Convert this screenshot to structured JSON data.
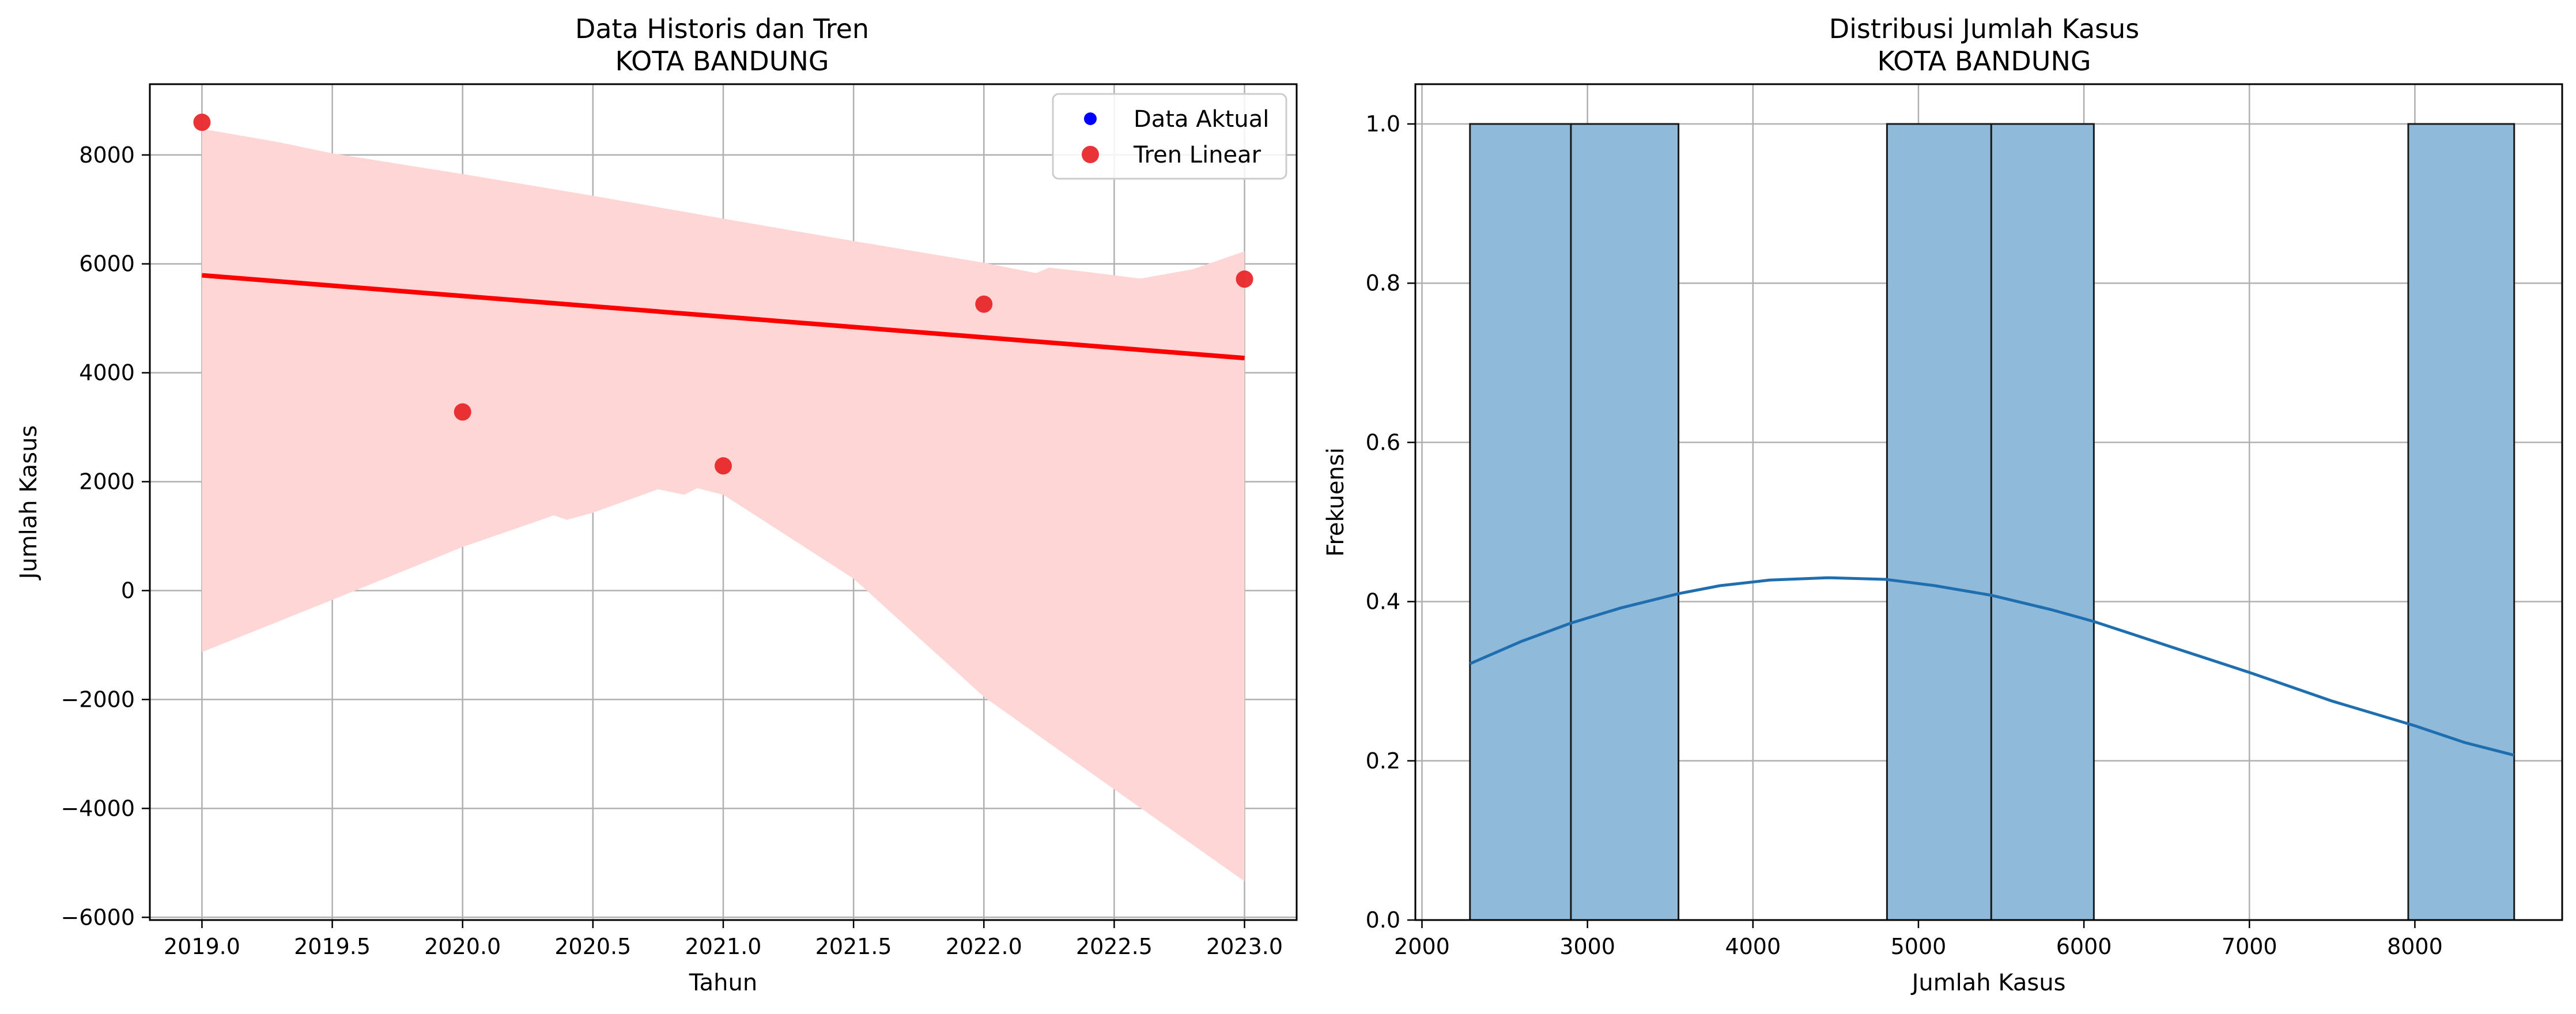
{
  "chart_data": [
    {
      "type": "scatter",
      "title_lines": [
        "Data Historis dan Tren",
        "KOTA BANDUNG"
      ],
      "xlabel": "Tahun",
      "ylabel": "Jumlah Kasus",
      "xlim": [
        2018.8,
        2023.2
      ],
      "ylim": [
        -6050,
        9300
      ],
      "xticks": [
        2019.0,
        2019.5,
        2020.0,
        2020.5,
        2021.0,
        2021.5,
        2022.0,
        2022.5,
        2023.0
      ],
      "xtick_labels": [
        "2019.0",
        "2019.5",
        "2020.0",
        "2020.5",
        "2021.0",
        "2021.5",
        "2022.0",
        "2022.5",
        "2023.0"
      ],
      "yticks": [
        -6000,
        -4000,
        -2000,
        0,
        2000,
        4000,
        6000,
        8000
      ],
      "ytick_labels": [
        "−6000",
        "−4000",
        "−2000",
        "0",
        "2000",
        "4000",
        "6000",
        "8000"
      ],
      "grid": true,
      "legend_position": "top-right",
      "legend": [
        {
          "label": "Data Aktual",
          "color": "#0000ff"
        },
        {
          "label": "Tren Linear",
          "color": "#e8282b"
        }
      ],
      "points": [
        {
          "x": 2019,
          "y": 8600
        },
        {
          "x": 2020,
          "y": 3280
        },
        {
          "x": 2021,
          "y": 2290
        },
        {
          "x": 2022,
          "y": 5260
        },
        {
          "x": 2023,
          "y": 5720
        }
      ],
      "trend_line": {
        "x": [
          2019,
          2023
        ],
        "y": [
          5790,
          4270
        ],
        "color": "#ff0000"
      },
      "confidence_band": {
        "color": "#ffd6d6",
        "upper": [
          [
            2019.0,
            8480
          ],
          [
            2019.3,
            8230
          ],
          [
            2019.5,
            8030
          ],
          [
            2020.0,
            7650
          ],
          [
            2020.5,
            7250
          ],
          [
            2021.0,
            6830
          ],
          [
            2021.5,
            6420
          ],
          [
            2022.0,
            6020
          ],
          [
            2022.2,
            5830
          ],
          [
            2022.25,
            5930
          ],
          [
            2022.4,
            5850
          ],
          [
            2022.6,
            5730
          ],
          [
            2022.8,
            5900
          ],
          [
            2023.0,
            6230
          ]
        ],
        "lower": [
          [
            2019.0,
            -1130
          ],
          [
            2019.5,
            -170
          ],
          [
            2020.0,
            800
          ],
          [
            2020.35,
            1380
          ],
          [
            2020.4,
            1300
          ],
          [
            2020.5,
            1430
          ],
          [
            2020.75,
            1860
          ],
          [
            2020.85,
            1760
          ],
          [
            2020.9,
            1880
          ],
          [
            2021.0,
            1760
          ],
          [
            2021.5,
            220
          ],
          [
            2022.0,
            -1950
          ],
          [
            2022.5,
            -3650
          ],
          [
            2023.0,
            -5340
          ]
        ]
      }
    },
    {
      "type": "histogram",
      "title_lines": [
        "Distribusi Jumlah Kasus",
        "KOTA BANDUNG"
      ],
      "xlabel": "Jumlah Kasus",
      "ylabel": "Frekuensi",
      "xlim": [
        1960,
        8890
      ],
      "ylim": [
        0,
        1.05
      ],
      "xticks": [
        2000,
        3000,
        4000,
        5000,
        6000,
        7000,
        8000
      ],
      "xtick_labels": [
        "2000",
        "3000",
        "4000",
        "5000",
        "6000",
        "7000",
        "8000"
      ],
      "yticks": [
        0.0,
        0.2,
        0.4,
        0.6,
        0.8,
        1.0
      ],
      "ytick_labels": [
        "0.0",
        "0.2",
        "0.4",
        "0.6",
        "0.8",
        "1.0"
      ],
      "grid": true,
      "bar_color": "#8fbad9",
      "edge_color": "#1a1a1a",
      "bins": [
        {
          "x0": 2290,
          "x1": 2900,
          "count": 1
        },
        {
          "x0": 2900,
          "x1": 3550,
          "count": 1
        },
        {
          "x0": 4810,
          "x1": 5440,
          "count": 1
        },
        {
          "x0": 5440,
          "x1": 6060,
          "count": 1
        },
        {
          "x0": 7960,
          "x1": 8600,
          "count": 1
        }
      ],
      "kde": {
        "color": "#1f6fb0",
        "x": [
          2290,
          2600,
          2900,
          3200,
          3550,
          3800,
          4100,
          4450,
          4800,
          5100,
          5440,
          5800,
          6060,
          6500,
          7000,
          7500,
          8000,
          8300,
          8600
        ],
        "y": [
          0.322,
          0.35,
          0.373,
          0.392,
          0.41,
          0.42,
          0.427,
          0.43,
          0.428,
          0.42,
          0.408,
          0.39,
          0.375,
          0.345,
          0.311,
          0.275,
          0.244,
          0.223,
          0.207
        ]
      }
    }
  ]
}
